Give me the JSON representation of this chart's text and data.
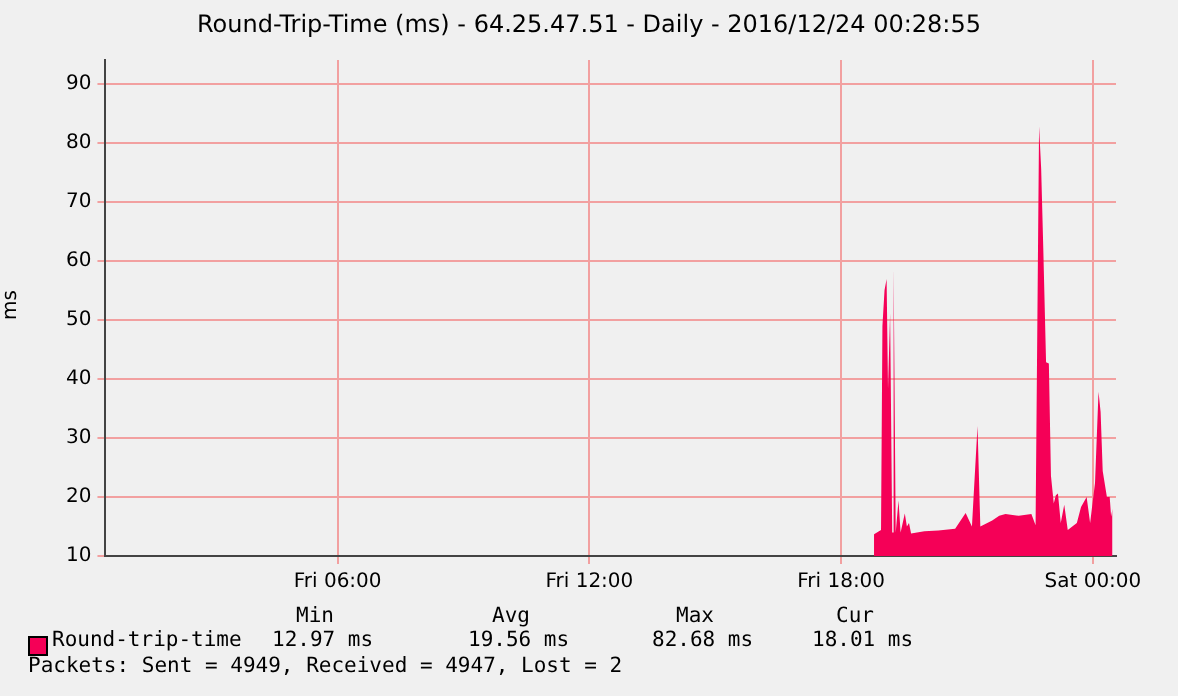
{
  "chart_data": {
    "type": "area",
    "title": "Round-Trip-Time (ms) - 64.25.47.51 - Daily - 2016/12/24 00:28:55",
    "ylabel": "ms",
    "x": [
      "2016-12-23T18:47",
      "2016-12-23T18:57",
      "2016-12-23T18:59",
      "2016-12-23T19:02",
      "2016-12-23T19:05",
      "2016-12-23T19:07",
      "2016-12-23T19:10",
      "2016-12-23T19:13",
      "2016-12-23T19:15",
      "2016-12-23T19:18",
      "2016-12-23T19:22",
      "2016-12-23T19:25",
      "2016-12-23T19:31",
      "2016-12-23T19:34",
      "2016-12-23T19:37",
      "2016-12-23T19:40",
      "2016-12-23T19:59",
      "2016-12-23T20:19",
      "2016-12-23T20:43",
      "2016-12-23T20:58",
      "2016-12-23T21:07",
      "2016-12-23T21:15",
      "2016-12-23T21:19",
      "2016-12-23T21:36",
      "2016-12-23T21:46",
      "2016-12-23T21:55",
      "2016-12-23T22:14",
      "2016-12-23T22:32",
      "2016-12-23T22:38",
      "2016-12-23T22:43",
      "2016-12-23T22:46",
      "2016-12-23T22:49",
      "2016-12-23T22:53",
      "2016-12-23T22:57",
      "2016-12-23T23:00",
      "2016-12-23T23:04",
      "2016-12-23T23:07",
      "2016-12-23T23:10",
      "2016-12-23T23:14",
      "2016-12-23T23:19",
      "2016-12-23T23:24",
      "2016-12-23T23:37",
      "2016-12-23T23:43",
      "2016-12-23T23:51",
      "2016-12-23T23:56",
      "2016-12-24T00:03",
      "2016-12-24T00:08",
      "2016-12-24T00:11",
      "2016-12-24T00:14",
      "2016-12-24T00:20",
      "2016-12-24T00:24",
      "2016-12-24T00:26",
      "2016-12-24T00:28"
    ],
    "series": [
      {
        "name": "Round-trip-time",
        "color": "#f50057",
        "values": [
          13.7,
          14.4,
          48.9,
          55,
          56.9,
          38.3,
          51.1,
          14,
          58.9,
          14,
          19.4,
          14,
          17.2,
          15,
          15.6,
          13.8,
          14.2,
          14.3,
          14.6,
          17.3,
          15,
          32,
          15,
          16,
          16.8,
          17.1,
          16.8,
          17.1,
          15.2,
          82.8,
          75.6,
          62.2,
          42.8,
          42.6,
          23.6,
          18.9,
          20.3,
          20.6,
          15.6,
          18.7,
          14.4,
          15.6,
          18.3,
          20,
          15.6,
          22.4,
          37.8,
          34.4,
          24.4,
          20,
          20,
          16.7,
          18
        ]
      }
    ],
    "xlim": [
      "2016-12-23T00:28",
      "2016-12-24T00:33"
    ],
    "xticks": [
      {
        "value": "2016-12-23T06:00",
        "label": "Fri 06:00"
      },
      {
        "value": "2016-12-23T12:00",
        "label": "Fri 12:00"
      },
      {
        "value": "2016-12-23T18:00",
        "label": "Fri 18:00"
      },
      {
        "value": "2016-12-24T00:00",
        "label": "Sat 00:00"
      }
    ],
    "ylim": [
      10,
      94
    ],
    "yticks": [
      10,
      20,
      30,
      40,
      50,
      60,
      70,
      80,
      90
    ],
    "grid": true,
    "legend": "bottom left",
    "annotations": [
      "Min",
      "Avg",
      "Max",
      "Cur",
      "12.97 ms",
      "19.56 ms",
      "82.68 ms",
      "18.01 ms",
      "Packets: Sent = 4949, Received = 4947, Lost = 2"
    ]
  }
}
